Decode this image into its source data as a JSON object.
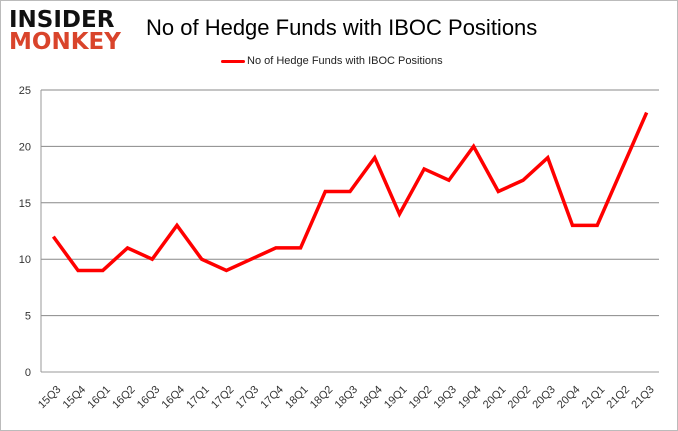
{
  "logo": {
    "line1": "INSIDER",
    "line2": "MONKEY"
  },
  "chart_data": {
    "type": "line",
    "title": "No of Hedge Funds with IBOC Positions",
    "xlabel": "",
    "ylabel": "",
    "categories": [
      "15Q3",
      "15Q4",
      "16Q1",
      "16Q2",
      "16Q3",
      "16Q4",
      "17Q1",
      "17Q2",
      "17Q3",
      "17Q4",
      "18Q1",
      "18Q2",
      "18Q3",
      "18Q4",
      "19Q1",
      "19Q2",
      "19Q3",
      "19Q4",
      "20Q1",
      "20Q2",
      "20Q3",
      "20Q4",
      "21Q1",
      "21Q2",
      "21Q3"
    ],
    "series": [
      {
        "name": "No of Hedge Funds with IBOC Positions",
        "color": "#ff0000",
        "values": [
          12,
          9,
          9,
          11,
          10,
          13,
          10,
          9,
          10,
          11,
          11,
          16,
          16,
          19,
          14,
          18,
          17,
          20,
          16,
          17,
          19,
          13,
          13,
          18,
          23
        ]
      }
    ],
    "ylim": [
      0,
      25
    ],
    "yticks": [
      0,
      5,
      10,
      15,
      20,
      25
    ],
    "grid": true,
    "legend": "top-center"
  }
}
